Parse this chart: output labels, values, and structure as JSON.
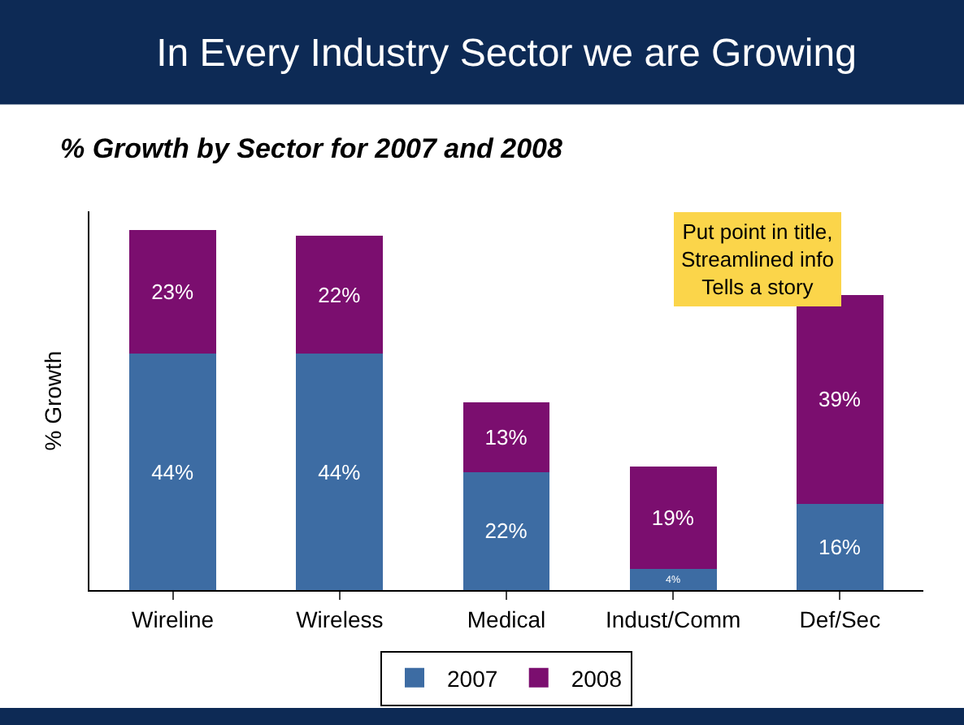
{
  "chart_data": {
    "type": "bar",
    "title": "In Every Industry Sector we are Growing",
    "subtitle": "% Growth by Sector for 2007 and 2008",
    "ylabel": "% Growth",
    "categories": [
      "Wireline",
      "Wireless",
      "Medical",
      "Indust/Comm",
      "Def/Sec"
    ],
    "stacked": true,
    "legend": "bottom",
    "series": [
      {
        "name": "2007",
        "color": "#3d6ca3",
        "values": [
          44,
          44,
          22,
          4,
          16
        ],
        "value_labels": [
          "44%",
          "44%",
          "22%",
          "4%",
          "16%"
        ]
      },
      {
        "name": "2008",
        "color": "#7b0e6f",
        "values": [
          23,
          22,
          13,
          19,
          39
        ],
        "value_labels": [
          "23%",
          "22%",
          "13%",
          "19%",
          "39%"
        ]
      }
    ],
    "annotations": [
      "Put point in title,\nStreamlined info\nTells a story"
    ]
  }
}
